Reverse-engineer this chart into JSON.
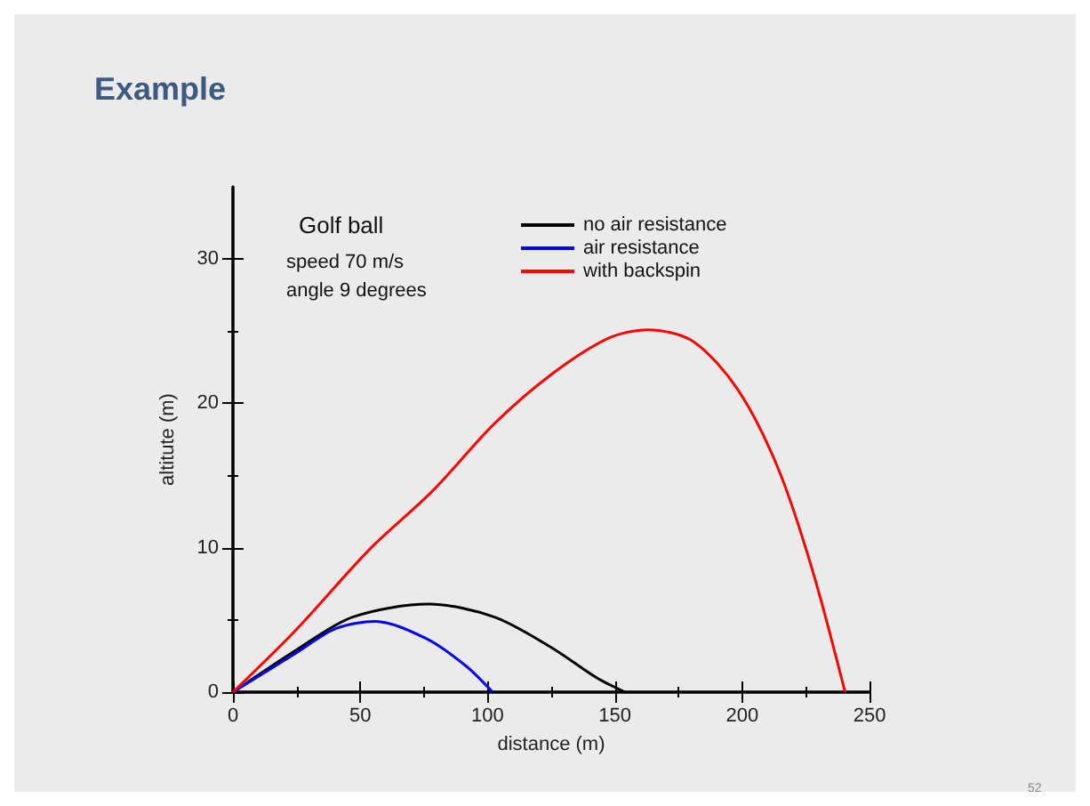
{
  "chart_data": {
    "type": "line",
    "title": "Example",
    "xlabel": "distance (m)",
    "ylabel": "altitute (m)",
    "xlim": [
      0,
      250
    ],
    "xticks": [
      0,
      50,
      100,
      150,
      200,
      250
    ],
    "ylim": [
      0,
      35
    ],
    "yticks": [
      0,
      10,
      20,
      30
    ],
    "grid": false,
    "legend": "top",
    "marker": "none",
    "line_style": "solid",
    "annotations": [
      "Golf ball",
      "speed 70 m/s",
      "angle 9 degrees",
      "52"
    ],
    "series": [
      {
        "name": "no air resistance",
        "color": "#000000",
        "x": [
          0,
          24.7,
          47,
          77,
          102.7,
          125,
          142.8,
          154
        ],
        "values": [
          0,
          2.9,
          5.2,
          6.1,
          5.2,
          3.1,
          1.0,
          0
        ]
      },
      {
        "name": "air resistance",
        "color": "#0000ff",
        "x": [
          0,
          24.7,
          40.3,
          55.9,
          76,
          91.6,
          102
        ],
        "values": [
          0,
          2.7,
          4.4,
          4.9,
          3.7,
          1.8,
          0
        ]
      },
      {
        "name": "with backspin",
        "color": "#ff0000",
        "x": [
          0,
          24.7,
          53.7,
          78.2,
          102.7,
          125,
          147.3,
          162.9,
          180.7,
          198.5,
          214.1,
          227.5,
          240.4
        ],
        "values": [
          0,
          4.3,
          9.9,
          13.9,
          18.6,
          22.0,
          24.5,
          25.1,
          24.3,
          20.9,
          15.5,
          8.5,
          0
        ]
      }
    ]
  }
}
